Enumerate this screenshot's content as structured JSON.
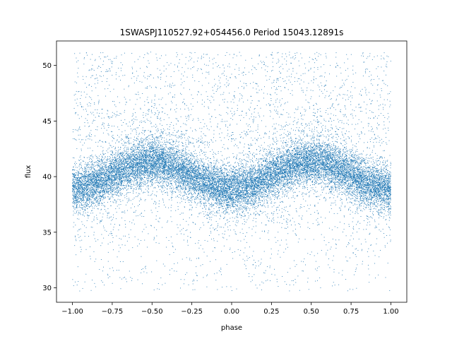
{
  "chart_data": {
    "type": "scatter",
    "title": "1SWASPJ110527.92+054456.0 Period 15043.12891s",
    "xlabel": "phase",
    "ylabel": "flux",
    "xlim": [
      -1.1,
      1.1
    ],
    "ylim": [
      28.7,
      52.2
    ],
    "xticks": [
      -1.0,
      -0.75,
      -0.5,
      -0.25,
      0.0,
      0.25,
      0.5,
      0.75,
      1.0
    ],
    "xtick_labels": [
      "−1.00",
      "−0.75",
      "−0.50",
      "−0.25",
      "0.00",
      "0.25",
      "0.50",
      "0.75",
      "1.00"
    ],
    "yticks": [
      30,
      35,
      40,
      45,
      50
    ],
    "ytick_labels": [
      "30",
      "35",
      "40",
      "45",
      "50"
    ],
    "grid": false,
    "point_color": "#1f77b4",
    "model": {
      "description_shown_by_points": "dense band oscillating with two cycles across phase",
      "mean_flux": 40.1,
      "amplitude": 1.2,
      "peak_phases": [
        -0.5,
        0.5
      ],
      "trough_phases": [
        0.0,
        -1.0,
        1.0
      ],
      "scatter_sigma": 1.0,
      "outlier_flux_range": [
        29.7,
        51.2
      ]
    }
  }
}
